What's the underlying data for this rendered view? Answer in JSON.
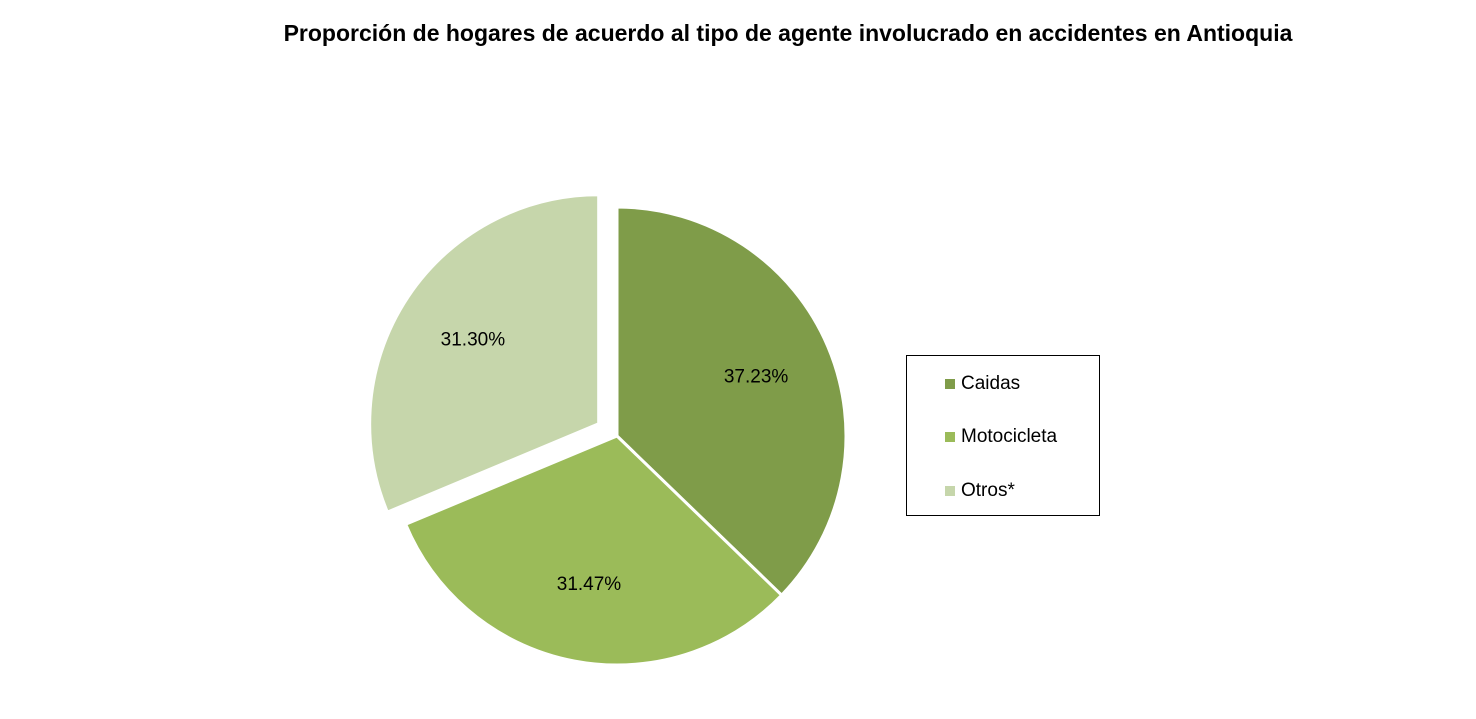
{
  "chart_data": {
    "type": "pie",
    "title": "Proporción de hogares de acuerdo al tipo de agente involucrado en accidentes en Antioquia",
    "categories": [
      "Caidas",
      "Motocicleta",
      "Otros*"
    ],
    "values": [
      37.23,
      31.47,
      31.3
    ],
    "labels": [
      "37.23%",
      "31.47%",
      "31.30%"
    ],
    "colors": [
      "#7f9c49",
      "#9bbb59",
      "#c6d6ab"
    ],
    "exploded": [
      false,
      false,
      true
    ],
    "legend_position": "right"
  }
}
